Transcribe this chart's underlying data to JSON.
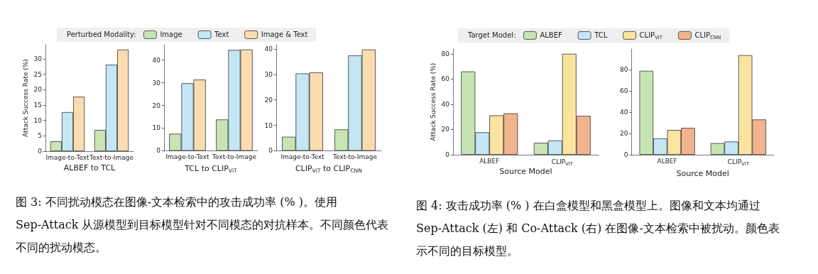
{
  "chart_data": [
    {
      "type": "bar",
      "xlabel": "ALBEF to TCL",
      "ylabel": "Attack Success Rate (%)",
      "categories": [
        "Image-to-Text",
        "Text-to-Image"
      ],
      "legend": "top",
      "legend_title": "Perturbed Modality:",
      "ylim": [
        0,
        34.6
      ],
      "yticks": [
        0,
        5,
        10,
        15,
        20,
        25,
        30
      ],
      "series": [
        {
          "name": "Image",
          "color": "#c9e4b4",
          "values": [
            3.2,
            6.9
          ]
        },
        {
          "name": "Text",
          "color": "#c4e6f5",
          "values": [
            12.7,
            28.1
          ]
        },
        {
          "name": "Image & Text",
          "color": "#fbdcb0",
          "values": [
            17.7,
            33.0
          ]
        }
      ],
      "annotations": [
        "图 3: 不同扰动模态在图像-文本检索中的攻击成功率 (% )。使用 Sep-Attack 从源模型到目标模型针对不同模态的对抗样本。不同颜色代表不同的扰动模态。"
      ]
    },
    {
      "type": "bar",
      "xlabel": "TCL to CLIP$_{ViT}$",
      "categories": [
        "Image-to-Text",
        "Text-to-Image"
      ],
      "ylim": [
        0,
        46.8
      ],
      "yticks": [
        0,
        10,
        20,
        30,
        40
      ],
      "series": [
        {
          "color": "#c9e4b4",
          "values": [
            7.5,
            13.8
          ]
        },
        {
          "color": "#c4e6f5",
          "values": [
            29.8,
            44.5
          ]
        },
        {
          "color": "#fbdcb0",
          "values": [
            31.4,
            44.7
          ]
        }
      ]
    },
    {
      "type": "bar",
      "xlabel": "CLIP$_{ViT}$ to CLIP$_{CNN}$",
      "categories": [
        "Image-to-Text",
        "Text-to-Image"
      ],
      "ylim": [
        0,
        41.7
      ],
      "yticks": [
        0,
        10,
        20,
        30,
        40
      ],
      "series": [
        {
          "color": "#c9e4b4",
          "values": [
            5.5,
            8.4
          ]
        },
        {
          "color": "#c4e6f5",
          "values": [
            30.4,
            37.5
          ]
        },
        {
          "color": "#fbdcb0",
          "values": [
            30.8,
            39.8
          ]
        }
      ]
    },
    {
      "type": "bar",
      "xlabel": "Source Model",
      "ylabel": "Attack Success Rate (%)",
      "categories": [
        "ALBEF",
        "CLIP$_{ViT}$"
      ],
      "legend": "top",
      "legend_title": "Target Model:",
      "ylim": [
        0,
        83.8
      ],
      "yticks": [
        0,
        20,
        40,
        60,
        80
      ],
      "series": [
        {
          "name": "ALBEF",
          "color": "#c9e4b4",
          "values": [
            66,
            9.5
          ]
        },
        {
          "name": "TCL",
          "color": "#c4e6f5",
          "values": [
            17.8,
            11.3
          ]
        },
        {
          "name": "CLIP$_{ViT}$",
          "color": "#fbe3a0",
          "values": [
            31.2,
            80
          ]
        },
        {
          "name": "CLIP$_{CNN}$",
          "color": "#f2b48e",
          "values": [
            32.8,
            30.8
          ]
        }
      ],
      "annotations": [
        "图 4: 攻击成功率 (% ) 在白盒模型和黑盒模型上。图像和文本均通过 Sep-Attack (左) 和 Co-Attack (右) 在图像-文本检索中被扰动。颜色表示不同的目标模型。"
      ]
    },
    {
      "type": "bar",
      "xlabel": "Source Model",
      "categories": [
        "ALBEF",
        "CLIP$_{ViT}$"
      ],
      "ylim": [
        0,
        99.3
      ],
      "yticks": [
        0,
        20,
        40,
        60,
        80
      ],
      "series": [
        {
          "color": "#c9e4b4",
          "values": [
            78.8,
            10.9
          ]
        },
        {
          "color": "#c4e6f5",
          "values": [
            15.3,
            12.4
          ]
        },
        {
          "color": "#fbe3a0",
          "values": [
            23.2,
            93.5
          ]
        },
        {
          "color": "#f2b48e",
          "values": [
            25.2,
            33.1
          ]
        }
      ]
    }
  ]
}
